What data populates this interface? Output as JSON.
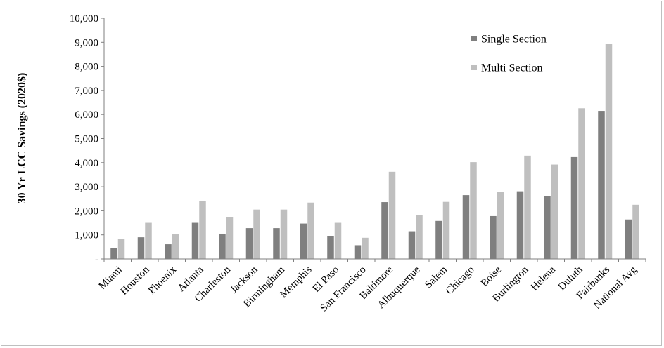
{
  "chart_data": {
    "type": "bar",
    "ylabel": "30 Yr LCC Savings (2020$)",
    "xlabel": "",
    "ylim": [
      0,
      10000
    ],
    "yticks": [
      0,
      1000,
      2000,
      3000,
      4000,
      5000,
      6000,
      7000,
      8000,
      9000,
      10000
    ],
    "ytick_labels": [
      "-",
      "1,000",
      "2,000",
      "3,000",
      "4,000",
      "5,000",
      "6,000",
      "7,000",
      "8,000",
      "9,000",
      "10,000"
    ],
    "grid": false,
    "legend_position": "top-right",
    "categories": [
      "Miami",
      "Houston",
      "Phoenix",
      "Atlanta",
      "Charleston",
      "Jackson",
      "Birmingham",
      "Memphis",
      "El Paso",
      "San Francisco",
      "Baltimore",
      "Albuquerque",
      "Salem",
      "Chicago",
      "Boise",
      "Burlington",
      "Helena",
      "Duluth",
      "Fairbanks",
      "National Avg"
    ],
    "series": [
      {
        "name": "Single Section",
        "color": "#7f7f7f",
        "values": [
          440,
          900,
          610,
          1500,
          1050,
          1280,
          1280,
          1470,
          960,
          570,
          2360,
          1150,
          1580,
          2650,
          1780,
          2810,
          2620,
          4230,
          6150,
          1640
        ]
      },
      {
        "name": "Multi Section",
        "color": "#bfbfbf",
        "values": [
          820,
          1500,
          1020,
          2420,
          1730,
          2050,
          2050,
          2340,
          1500,
          880,
          3620,
          1810,
          2370,
          4020,
          2770,
          4290,
          3920,
          6260,
          8950,
          2250
        ]
      }
    ]
  }
}
